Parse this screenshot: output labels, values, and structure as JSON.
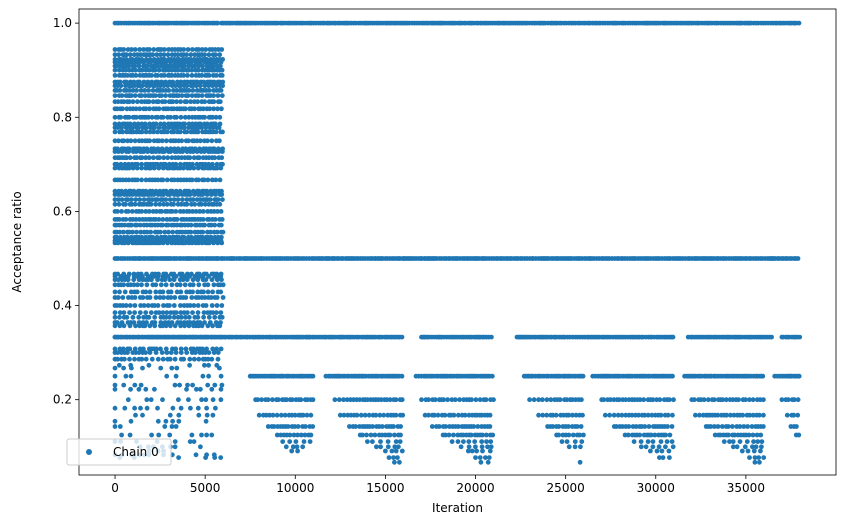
{
  "chart_data": {
    "type": "scatter",
    "title": "",
    "xlabel": "Iteration",
    "ylabel": "Acceptance ratio",
    "xlim": [
      -2000,
      40000
    ],
    "ylim": [
      0.04,
      1.03
    ],
    "xticks": [
      0,
      5000,
      10000,
      15000,
      20000,
      25000,
      30000,
      35000
    ],
    "yticks": [
      0.2,
      0.4,
      0.6,
      0.8,
      1.0
    ],
    "xtick_labels": [
      "0",
      "5000",
      "10000",
      "15000",
      "20000",
      "25000",
      "30000",
      "35000"
    ],
    "ytick_labels": [
      "0.2",
      "0.4",
      "0.6",
      "0.8",
      "1.0"
    ],
    "grid": false,
    "legend": {
      "position": "lower-left",
      "entries": [
        "Chain 0"
      ]
    },
    "color": "#1f77b4",
    "series": [
      {
        "name": "Chain 0",
        "bands": [
          {
            "y": 1.0,
            "x_ranges": [
              [
                0,
                5800
              ],
              [
                5900,
                38000
              ]
            ],
            "density": "solid"
          },
          {
            "y": 0.5,
            "x_ranges": [
              [
                0,
                38000
              ]
            ],
            "density": "solid"
          },
          {
            "y": 0.333,
            "x_ranges": [
              [
                0,
                16000
              ],
              [
                17000,
                21000
              ],
              [
                22300,
                31000
              ],
              [
                31800,
                36500
              ],
              [
                37000,
                38000
              ]
            ],
            "density": "solid"
          },
          {
            "y": 0.25,
            "x_ranges": [
              [
                7500,
                11000
              ],
              [
                11700,
                16000
              ],
              [
                16700,
                21000
              ],
              [
                22700,
                26000
              ],
              [
                26500,
                31000
              ],
              [
                31600,
                36000
              ],
              [
                36600,
                38000
              ]
            ],
            "density": "solid"
          },
          {
            "y": 0.2,
            "x_ranges": [
              [
                7800,
                11000
              ],
              [
                12200,
                16000
              ],
              [
                17000,
                21000
              ],
              [
                23000,
                26000
              ],
              [
                27000,
                31000
              ],
              [
                32000,
                36000
              ],
              [
                37000,
                38000
              ]
            ],
            "density": "medium"
          },
          {
            "y": 0.167,
            "x_ranges": [
              [
                8000,
                11000
              ],
              [
                12500,
                16000
              ],
              [
                17200,
                21000
              ],
              [
                23500,
                26000
              ],
              [
                27200,
                31000
              ],
              [
                32200,
                36000
              ],
              [
                37300,
                38000
              ]
            ],
            "density": "medium"
          },
          {
            "y": 0.143,
            "x_ranges": [
              [
                8500,
                11000
              ],
              [
                13000,
                16000
              ],
              [
                17600,
                21000
              ],
              [
                24000,
                26000
              ],
              [
                27700,
                31000
              ],
              [
                32800,
                36000
              ],
              [
                37500,
                38000
              ]
            ],
            "density": "medium"
          },
          {
            "y": 0.125,
            "x_ranges": [
              [
                9000,
                11000
              ],
              [
                13600,
                16000
              ],
              [
                18200,
                21000
              ],
              [
                24500,
                26000
              ],
              [
                28300,
                31000
              ],
              [
                33300,
                36000
              ],
              [
                37800,
                38000
              ]
            ],
            "density": "medium"
          },
          {
            "y": 0.111,
            "x_ranges": [
              [
                9300,
                11000
              ],
              [
                14000,
                16000
              ],
              [
                18700,
                21000
              ],
              [
                24800,
                26000
              ],
              [
                28800,
                31000
              ],
              [
                33800,
                36000
              ]
            ],
            "density": "sparse"
          },
          {
            "y": 0.1,
            "x_ranges": [
              [
                9500,
                10800
              ],
              [
                14500,
                16000
              ],
              [
                19200,
                21000
              ],
              [
                25200,
                26000
              ],
              [
                29200,
                31000
              ],
              [
                34300,
                36000
              ]
            ],
            "density": "sparse"
          },
          {
            "y": 0.091,
            "x_ranges": [
              [
                9800,
                10500
              ],
              [
                15000,
                16000
              ],
              [
                19600,
                21000
              ],
              [
                29700,
                31000
              ],
              [
                34800,
                36000
              ]
            ],
            "density": "sparse"
          },
          {
            "y": 0.077,
            "x_ranges": [
              [
                15200,
                16000
              ],
              [
                20000,
                21000
              ],
              [
                30200,
                31000
              ],
              [
                35200,
                36000
              ]
            ],
            "density": "sparse"
          },
          {
            "y": 0.067,
            "x_ranges": [
              [
                15500,
                16000
              ],
              [
                20300,
                21000
              ],
              [
                25800,
                26000
              ],
              [
                35500,
                36000
              ]
            ],
            "density": "sparse"
          }
        ],
        "early_phase": {
          "x_range": [
            0,
            6000
          ],
          "levels": [
            0.944,
            0.933,
            0.923,
            0.917,
            0.909,
            0.9,
            0.889,
            0.875,
            0.867,
            0.857,
            0.846,
            0.833,
            0.818,
            0.8,
            0.786,
            0.778,
            0.769,
            0.75,
            0.733,
            0.727,
            0.714,
            0.7,
            0.692,
            0.667,
            0.643,
            0.636,
            0.625,
            0.615,
            0.6,
            0.583,
            0.571,
            0.556,
            0.545,
            0.538,
            0.533,
            0.467,
            0.462,
            0.455,
            0.444,
            0.429,
            0.417,
            0.4,
            0.385,
            0.375,
            0.364,
            0.357,
            0.333,
            0.308,
            0.3,
            0.286,
            0.273,
            0.267,
            0.25,
            0.231,
            0.222,
            0.2,
            0.182,
            0.167,
            0.154,
            0.143,
            0.125,
            0.111,
            0.1,
            0.091,
            0.083,
            0.077
          ]
        }
      }
    ]
  }
}
